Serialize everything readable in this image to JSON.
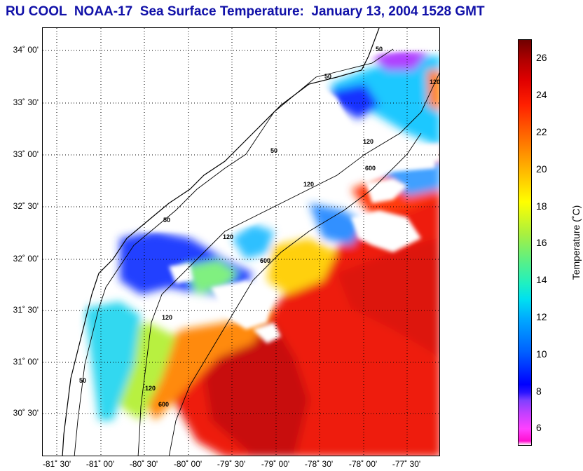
{
  "title": "RU COOL  NOAA-17  Sea Surface Temperature:  January 13, 2004 1528 GMT",
  "map": {
    "lat_labels": [
      "34˚ 00'",
      "33˚ 30'",
      "33˚ 00'",
      "32˚ 30'",
      "32˚ 00'",
      "31˚ 30'",
      "31˚ 00'",
      "30˚ 30'"
    ],
    "lon_labels": [
      "-81˚ 30'",
      "-81˚ 00'",
      "-80˚ 30'",
      "-80˚ 00'",
      "-79˚ 30'",
      "-79˚ 00'",
      "-78˚ 30'",
      "-78˚ 00'",
      "-77˚ 30'"
    ],
    "isobath_labels": [
      "50",
      "50",
      "50",
      "50",
      "50",
      "120",
      "120",
      "120",
      "120",
      "120",
      "120",
      "600",
      "600",
      "600"
    ]
  },
  "colorbar": {
    "title": "Temperature (˚C)",
    "ticks": [
      "26",
      "24",
      "22",
      "20",
      "18",
      "16",
      "14",
      "12",
      "10",
      "8",
      "6"
    ],
    "range": [
      5,
      27
    ]
  }
}
